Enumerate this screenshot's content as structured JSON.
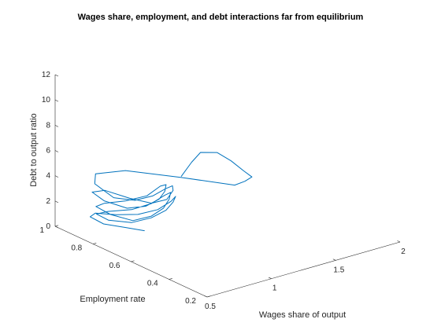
{
  "chart_data": {
    "type": "line",
    "projection": "3d",
    "title": "Wages share, employment, and debt interactions far from equilibrium",
    "xlabel": "Wages share of output",
    "ylabel": "Employment rate",
    "zlabel": "Debt to output ratio",
    "xlim": [
      0.5,
      2
    ],
    "ylim": [
      0.2,
      1
    ],
    "zlim": [
      0,
      12
    ],
    "xticks": [
      "0.5",
      "1",
      "1.5",
      "2"
    ],
    "yticks": [
      "0.2",
      "0.4",
      "0.6",
      "0.8",
      "1"
    ],
    "zticks": [
      "0",
      "2",
      "4",
      "6",
      "8",
      "10",
      "12"
    ],
    "grid": false,
    "series": [
      {
        "color": "#0072BD",
        "x": [
          0.92,
          0.97,
          1.01,
          1.05,
          1.07,
          1.08,
          1.07,
          1.03,
          0.98,
          0.92,
          0.84,
          0.74,
          0.66,
          0.66,
          0.72,
          0.8,
          0.87,
          0.91,
          0.93,
          0.91,
          0.85,
          0.77,
          0.68,
          0.64,
          0.66,
          0.72,
          0.79,
          0.85,
          0.88,
          0.89,
          0.86,
          0.8,
          0.72,
          0.66,
          0.64,
          0.68,
          0.75,
          0.82,
          0.87,
          0.9,
          0.91,
          0.88,
          0.82,
          0.74,
          0.66,
          0.63,
          0.65,
          0.71,
          0.79,
          0.86,
          0.9,
          0.92,
          0.9,
          0.84,
          0.76,
          0.68,
          0.62,
          0.61,
          0.64,
          0.71,
          0.78
        ],
        "y": [
          0.62,
          0.6,
          0.58,
          0.52,
          0.46,
          0.4,
          0.35,
          0.36,
          0.38,
          0.62,
          0.86,
          0.95,
          0.9,
          0.8,
          0.73,
          0.69,
          0.67,
          0.66,
          0.67,
          0.69,
          0.73,
          0.79,
          0.86,
          0.9,
          0.85,
          0.77,
          0.72,
          0.69,
          0.68,
          0.68,
          0.69,
          0.72,
          0.78,
          0.85,
          0.88,
          0.83,
          0.76,
          0.71,
          0.68,
          0.67,
          0.67,
          0.68,
          0.71,
          0.76,
          0.83,
          0.87,
          0.82,
          0.74,
          0.69,
          0.66,
          0.65,
          0.65,
          0.66,
          0.69,
          0.74,
          0.8,
          0.87,
          0.89,
          0.84,
          0.77,
          0.72
        ],
        "z": [
          5.4,
          6.5,
          7.3,
          7.6,
          7.3,
          6.9,
          6.8,
          6.5,
          6.2,
          5.3,
          4.4,
          3.8,
          3.6,
          3.2,
          3.3,
          3.7,
          4.2,
          4.4,
          3.9,
          3.1,
          2.7,
          2.9,
          3.3,
          3.0,
          2.6,
          2.4,
          2.7,
          3.3,
          3.9,
          4.4,
          4.3,
          3.5,
          2.9,
          2.4,
          2.0,
          1.6,
          1.4,
          1.9,
          2.6,
          3.3,
          3.8,
          3.6,
          2.9,
          2.3,
          1.9,
          1.5,
          1.3,
          1.5,
          2.0,
          2.6,
          3.2,
          3.6,
          3.2,
          2.5,
          2.0,
          1.8,
          1.6,
          1.2,
          0.9,
          0.9,
          0.8
        ]
      }
    ]
  }
}
